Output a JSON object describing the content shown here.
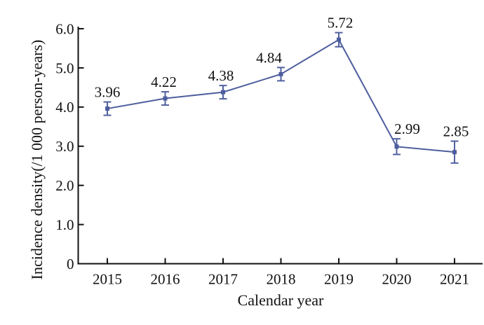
{
  "figure": {
    "background": "#ffffff"
  },
  "chart_data": {
    "type": "line",
    "title": "",
    "xlabel": "Calendar year",
    "ylabel": "Incidence density(/1 000 person-years)",
    "categories": [
      "2015",
      "2016",
      "2017",
      "2018",
      "2019",
      "2020",
      "2021"
    ],
    "series": [
      {
        "name": "incidence-density",
        "values": [
          3.96,
          4.22,
          4.38,
          4.84,
          5.72,
          2.99,
          2.85
        ],
        "errors": [
          0.17,
          0.17,
          0.17,
          0.17,
          0.18,
          0.2,
          0.28
        ],
        "point_labels": [
          "3.96",
          "4.22",
          "4.38",
          "4.84",
          "5.72",
          "2.99",
          "2.85"
        ],
        "point_label_dx": [
          0,
          -2,
          -3,
          -17,
          2,
          15,
          2
        ]
      }
    ],
    "ylim": [
      0,
      6
    ],
    "y_tick_values": [
      0,
      1,
      2,
      3,
      4,
      5,
      6
    ],
    "y_tick_labels": [
      "0",
      "1.0",
      "2.0",
      "3.0",
      "4.0",
      "5.0",
      "6.0"
    ],
    "grid": false,
    "legend": null,
    "marker": "square",
    "error_caps": true,
    "colors": {
      "line": "#4d5d9d",
      "marker": "#4d5d9d",
      "error_bar": "#52619f",
      "axis": "#111111",
      "text": "#111111"
    }
  }
}
